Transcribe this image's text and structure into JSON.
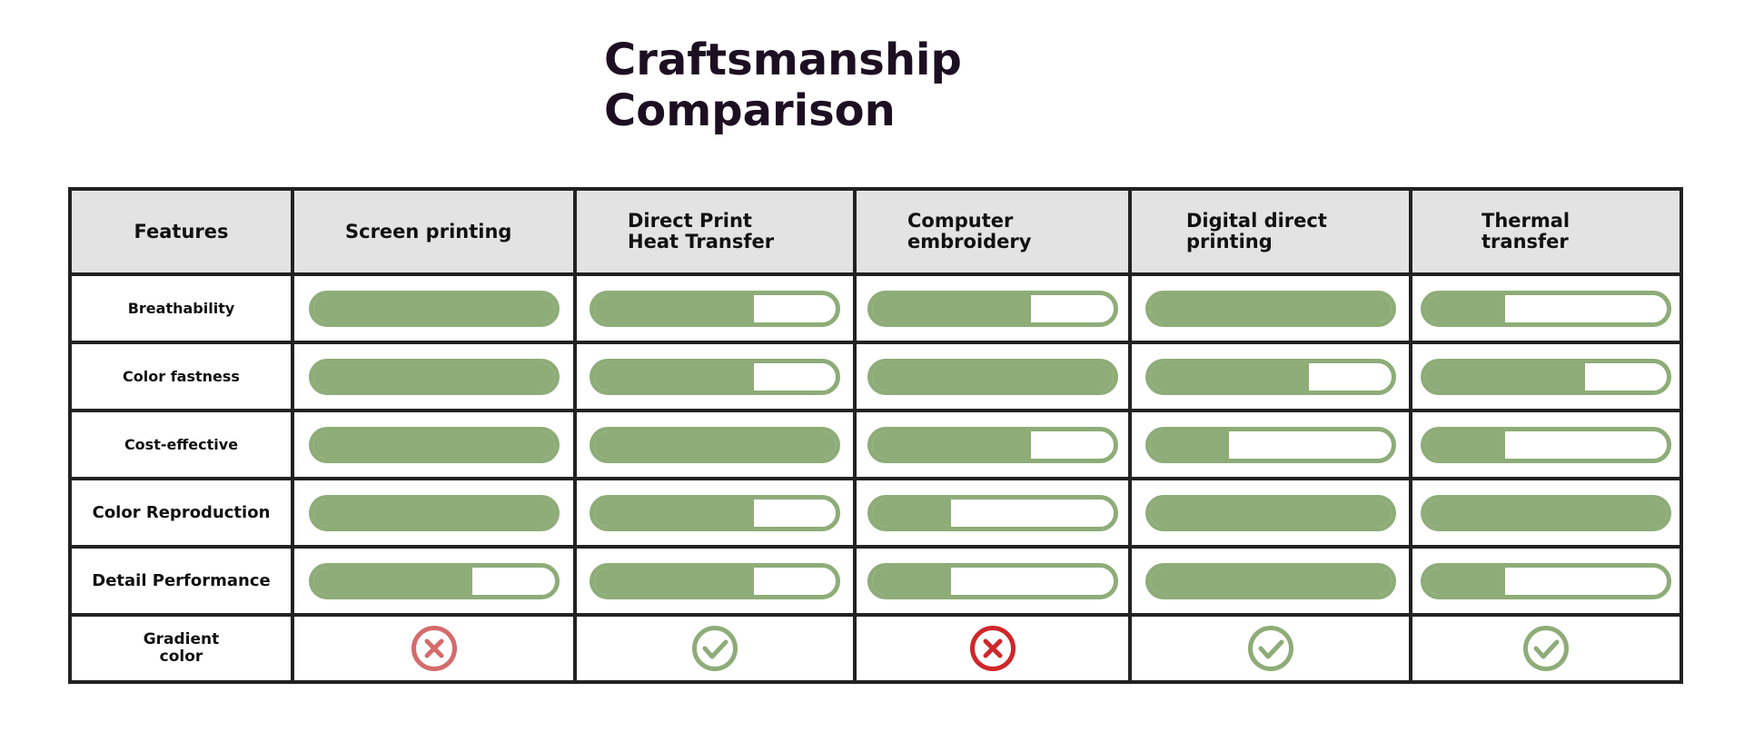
{
  "title": {
    "line1": "Craftsmanship",
    "line2": "Comparison"
  },
  "colors": {
    "bar": "#8eac78",
    "check": "#8eac78",
    "cross_light": "#d46b6b",
    "cross_dark": "#d0262a",
    "header_bg": "#e3e3e3",
    "title": "#1d0f22"
  },
  "table": {
    "feature_header": "Features",
    "methods": [
      "Screen printing",
      "Direct Print Heat Transfer",
      "Computer embroidery",
      "Digital direct printing",
      "Thermal transfer"
    ],
    "rows": [
      {
        "feature": "Breathability",
        "ratings": [
          1.0,
          0.66,
          0.66,
          1.0,
          0.33
        ]
      },
      {
        "feature": "Color fastness",
        "ratings": [
          1.0,
          0.66,
          1.0,
          0.66,
          0.66
        ]
      },
      {
        "feature": "Cost-effective",
        "ratings": [
          1.0,
          1.0,
          0.66,
          0.33,
          0.33
        ]
      },
      {
        "feature": "Color Reproduction",
        "ratings": [
          1.0,
          0.66,
          0.33,
          1.0,
          1.0
        ]
      },
      {
        "feature": "Detail Performance",
        "ratings": [
          0.66,
          0.66,
          0.33,
          1.0,
          0.33
        ]
      }
    ],
    "gradient": {
      "feature": "Gradient color",
      "marks": [
        {
          "value": "no",
          "icon": "cross-circle-icon",
          "color": "#d46b6b"
        },
        {
          "value": "yes",
          "icon": "check-circle-icon",
          "color": "#8eac78"
        },
        {
          "value": "no",
          "icon": "cross-circle-icon",
          "color": "#d0262a"
        },
        {
          "value": "yes",
          "icon": "check-circle-icon",
          "color": "#8eac78"
        },
        {
          "value": "yes",
          "icon": "check-circle-icon",
          "color": "#8eac78"
        }
      ]
    }
  }
}
